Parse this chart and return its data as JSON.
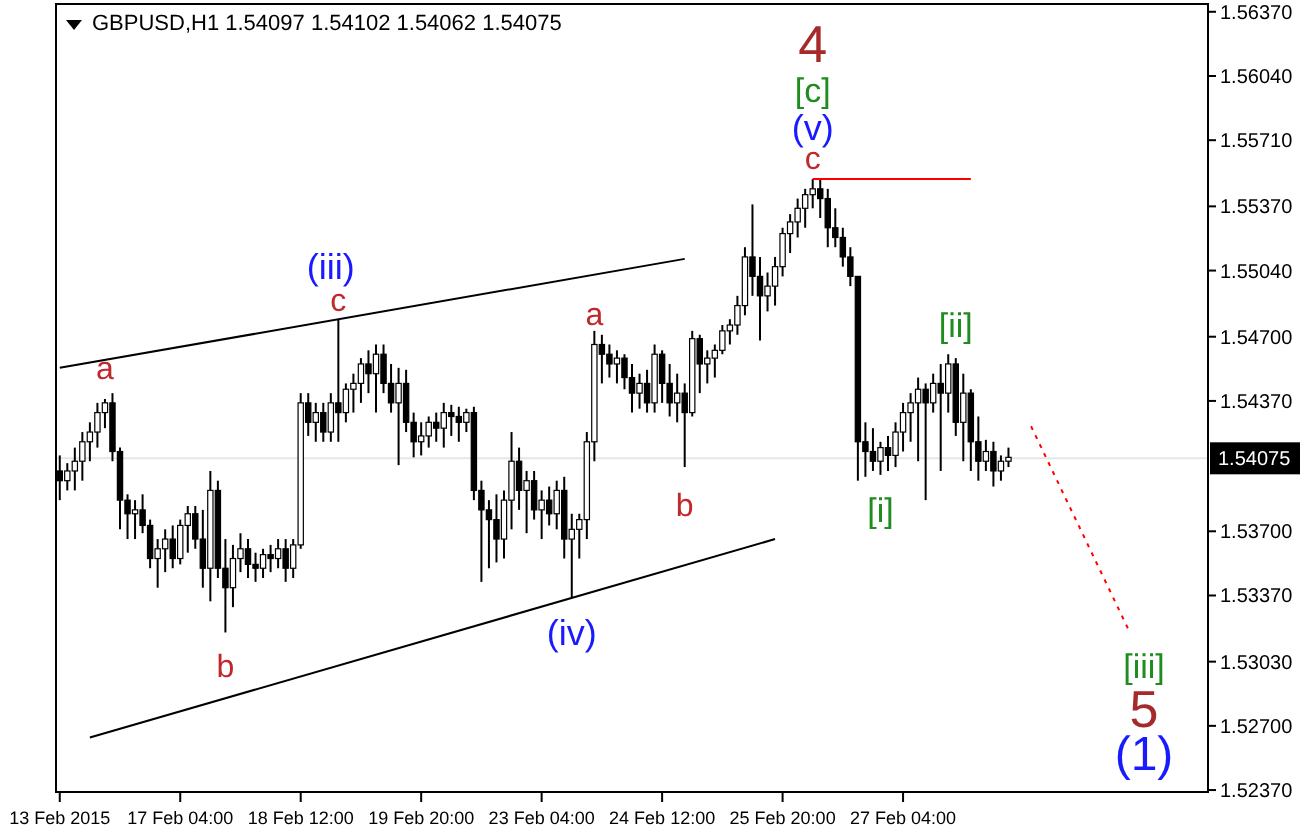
{
  "chart_data": {
    "type": "candlestick",
    "title": "GBPUSD,H1  1.54097 1.54102 1.54062 1.54075",
    "color": "#000000",
    "categories": [
      "13 Feb 2015",
      null,
      null,
      null,
      null,
      null,
      null,
      null,
      null,
      null,
      null,
      null,
      null,
      null,
      null,
      null,
      "17 Feb 04:00",
      null,
      null,
      null,
      null,
      null,
      null,
      null,
      null,
      null,
      null,
      null,
      null,
      null,
      null,
      null,
      "18 Feb 12:00",
      null,
      null,
      null,
      null,
      null,
      null,
      null,
      null,
      null,
      null,
      null,
      null,
      null,
      null,
      null,
      "19 Feb 20:00",
      null,
      null,
      null,
      null,
      null,
      null,
      null,
      null,
      null,
      null,
      null,
      null,
      null,
      null,
      null,
      "23 Feb 04:00",
      null,
      null,
      null,
      null,
      null,
      null,
      null,
      null,
      null,
      null,
      null,
      null,
      null,
      null,
      null,
      "24 Feb 12:00",
      null,
      null,
      null,
      null,
      null,
      null,
      null,
      null,
      null,
      null,
      null,
      null,
      null,
      null,
      null,
      "25 Feb 20:00",
      null,
      null,
      null,
      null,
      null,
      null,
      null,
      null,
      null,
      null,
      null,
      null,
      null,
      null,
      null,
      "27 Feb 04:00",
      null,
      null,
      null,
      null,
      null,
      null,
      null,
      null,
      null,
      null,
      null,
      null,
      null,
      null,
      null,
      null,
      null,
      null,
      null,
      null,
      null,
      null,
      null,
      null,
      null,
      null,
      null,
      null,
      null,
      null,
      null,
      null,
      null,
      null,
      null,
      null,
      null,
      null,
      null,
      null
    ],
    "ohlc": [
      [
        1.5401,
        1.5409,
        1.5386,
        1.5396
      ],
      [
        1.5396,
        1.5405,
        1.5391,
        1.5401
      ],
      [
        1.5401,
        1.5413,
        1.5391,
        1.5406
      ],
      [
        1.5406,
        1.5421,
        1.5396,
        1.5416
      ],
      [
        1.5416,
        1.5426,
        1.5406,
        1.5421
      ],
      [
        1.5421,
        1.5436,
        1.5413,
        1.5431
      ],
      [
        1.5431,
        1.5438,
        1.5423,
        1.5436
      ],
      [
        1.5436,
        1.5441,
        1.5406,
        1.5411
      ],
      [
        1.5411,
        1.5413,
        1.5371,
        1.5386
      ],
      [
        1.5386,
        1.5389,
        1.5366,
        1.5379
      ],
      [
        1.5379,
        1.5386,
        1.5366,
        1.5381
      ],
      [
        1.5381,
        1.5389,
        1.5369,
        1.5373
      ],
      [
        1.5373,
        1.5376,
        1.5351,
        1.5356
      ],
      [
        1.5356,
        1.5366,
        1.5341,
        1.5361
      ],
      [
        1.5361,
        1.5371,
        1.5349,
        1.5366
      ],
      [
        1.5366,
        1.5373,
        1.5351,
        1.5356
      ],
      [
        1.5356,
        1.5376,
        1.5353,
        1.5373
      ],
      [
        1.5373,
        1.5383,
        1.5359,
        1.5379
      ],
      [
        1.5379,
        1.5383,
        1.5361,
        1.5366
      ],
      [
        1.5366,
        1.5381,
        1.5341,
        1.5351
      ],
      [
        1.5351,
        1.5401,
        1.5334,
        1.5391
      ],
      [
        1.5391,
        1.5396,
        1.5346,
        1.5351
      ],
      [
        1.5351,
        1.5366,
        1.5318,
        1.5341
      ],
      [
        1.5341,
        1.5363,
        1.5331,
        1.5356
      ],
      [
        1.5356,
        1.5369,
        1.5349,
        1.5361
      ],
      [
        1.5361,
        1.5366,
        1.5346,
        1.5353
      ],
      [
        1.5353,
        1.5359,
        1.5344,
        1.5351
      ],
      [
        1.5351,
        1.5361,
        1.5346,
        1.5358
      ],
      [
        1.5358,
        1.5363,
        1.5349,
        1.5356
      ],
      [
        1.5356,
        1.5366,
        1.5351,
        1.5361
      ],
      [
        1.5361,
        1.5366,
        1.5344,
        1.5351
      ],
      [
        1.5351,
        1.5366,
        1.5346,
        1.5363
      ],
      [
        1.5363,
        1.5441,
        1.5361,
        1.5436
      ],
      [
        1.5436,
        1.5441,
        1.5419,
        1.5426
      ],
      [
        1.5426,
        1.5436,
        1.5416,
        1.5431
      ],
      [
        1.5431,
        1.5436,
        1.5416,
        1.5421
      ],
      [
        1.5421,
        1.5441,
        1.5416,
        1.5436
      ],
      [
        1.5436,
        1.5479,
        1.5416,
        1.5431
      ],
      [
        1.5431,
        1.5446,
        1.5426,
        1.5443
      ],
      [
        1.5443,
        1.5451,
        1.5431,
        1.5446
      ],
      [
        1.5446,
        1.5459,
        1.5436,
        1.5456
      ],
      [
        1.5456,
        1.5463,
        1.5441,
        1.5451
      ],
      [
        1.5451,
        1.5466,
        1.5431,
        1.5461
      ],
      [
        1.5461,
        1.5466,
        1.5441,
        1.5446
      ],
      [
        1.5446,
        1.5456,
        1.5431,
        1.5436
      ],
      [
        1.5436,
        1.5454,
        1.5404,
        1.5446
      ],
      [
        1.5446,
        1.5453,
        1.5421,
        1.5426
      ],
      [
        1.5426,
        1.5431,
        1.5408,
        1.5416
      ],
      [
        1.5416,
        1.5426,
        1.5409,
        1.5419
      ],
      [
        1.5419,
        1.5429,
        1.5413,
        1.5426
      ],
      [
        1.5426,
        1.5431,
        1.5416,
        1.5423
      ],
      [
        1.5423,
        1.5436,
        1.5413,
        1.5431
      ],
      [
        1.5431,
        1.5435,
        1.5419,
        1.5429
      ],
      [
        1.5429,
        1.5434,
        1.5416,
        1.5426
      ],
      [
        1.5426,
        1.5433,
        1.5421,
        1.5431
      ],
      [
        1.5431,
        1.5434,
        1.5386,
        1.5391
      ],
      [
        1.5391,
        1.5396,
        1.5344,
        1.5381
      ],
      [
        1.5381,
        1.5386,
        1.5351,
        1.5376
      ],
      [
        1.5376,
        1.5389,
        1.5354,
        1.5366
      ],
      [
        1.5366,
        1.5391,
        1.5356,
        1.5386
      ],
      [
        1.5386,
        1.5421,
        1.5371,
        1.5406
      ],
      [
        1.5406,
        1.5413,
        1.5381,
        1.5391
      ],
      [
        1.5391,
        1.5401,
        1.5369,
        1.5396
      ],
      [
        1.5396,
        1.5401,
        1.5376,
        1.5381
      ],
      [
        1.5381,
        1.5391,
        1.5366,
        1.5386
      ],
      [
        1.5386,
        1.5393,
        1.5373,
        1.5379
      ],
      [
        1.5379,
        1.5396,
        1.5371,
        1.5391
      ],
      [
        1.5391,
        1.5398,
        1.5356,
        1.5366
      ],
      [
        1.5366,
        1.5379,
        1.5336,
        1.5371
      ],
      [
        1.5371,
        1.5379,
        1.5356,
        1.5376
      ],
      [
        1.5376,
        1.5421,
        1.5366,
        1.5416
      ],
      [
        1.5416,
        1.5473,
        1.5406,
        1.5466
      ],
      [
        1.5466,
        1.5471,
        1.5446,
        1.5461
      ],
      [
        1.5461,
        1.5466,
        1.5449,
        1.5456
      ],
      [
        1.5456,
        1.5463,
        1.5446,
        1.5459
      ],
      [
        1.5459,
        1.5461,
        1.5443,
        1.5449
      ],
      [
        1.5449,
        1.5456,
        1.5431,
        1.5441
      ],
      [
        1.5441,
        1.5451,
        1.5433,
        1.5446
      ],
      [
        1.5446,
        1.5453,
        1.5431,
        1.5436
      ],
      [
        1.5436,
        1.5466,
        1.5431,
        1.5461
      ],
      [
        1.5461,
        1.5463,
        1.5436,
        1.5446
      ],
      [
        1.5446,
        1.5456,
        1.5429,
        1.5436
      ],
      [
        1.5436,
        1.5451,
        1.5426,
        1.5441
      ],
      [
        1.5441,
        1.5446,
        1.5403,
        1.5431
      ],
      [
        1.5431,
        1.5473,
        1.5429,
        1.5469
      ],
      [
        1.5469,
        1.5471,
        1.5441,
        1.5456
      ],
      [
        1.5456,
        1.5463,
        1.5446,
        1.5459
      ],
      [
        1.5459,
        1.5466,
        1.5449,
        1.5463
      ],
      [
        1.5463,
        1.5476,
        1.5461,
        1.5473
      ],
      [
        1.5473,
        1.5479,
        1.5466,
        1.5476
      ],
      [
        1.5476,
        1.5491,
        1.5471,
        1.5486
      ],
      [
        1.5486,
        1.5516,
        1.5481,
        1.5511
      ],
      [
        1.5511,
        1.5538,
        1.5491,
        1.5501
      ],
      [
        1.5501,
        1.5511,
        1.5468,
        1.5491
      ],
      [
        1.5491,
        1.5503,
        1.5483,
        1.5496
      ],
      [
        1.5496,
        1.5511,
        1.5486,
        1.5506
      ],
      [
        1.5506,
        1.5526,
        1.5501,
        1.5523
      ],
      [
        1.5523,
        1.5533,
        1.5513,
        1.5529
      ],
      [
        1.5529,
        1.5541,
        1.5521,
        1.5536
      ],
      [
        1.5536,
        1.5546,
        1.5526,
        1.5543
      ],
      [
        1.5543,
        1.5551,
        1.5536,
        1.5546
      ],
      [
        1.5546,
        1.5551,
        1.5531,
        1.5541
      ],
      [
        1.5541,
        1.5546,
        1.5516,
        1.5526
      ],
      [
        1.5526,
        1.5536,
        1.5516,
        1.5521
      ],
      [
        1.5521,
        1.5526,
        1.5506,
        1.5511
      ],
      [
        1.5511,
        1.5516,
        1.5496,
        1.5501
      ],
      [
        1.5501,
        1.5501,
        1.5396,
        1.5416
      ],
      [
        1.5416,
        1.5426,
        1.5398,
        1.5411
      ],
      [
        1.5411,
        1.5423,
        1.5401,
        1.5406
      ],
      [
        1.5406,
        1.5416,
        1.5399,
        1.5413
      ],
      [
        1.5413,
        1.5419,
        1.5401,
        1.5409
      ],
      [
        1.5409,
        1.5426,
        1.5403,
        1.5421
      ],
      [
        1.5421,
        1.5436,
        1.5411,
        1.5431
      ],
      [
        1.5431,
        1.5441,
        1.5416,
        1.5436
      ],
      [
        1.5436,
        1.5449,
        1.5406,
        1.5443
      ],
      [
        1.5443,
        1.5446,
        1.5386,
        1.5436
      ],
      [
        1.5436,
        1.5451,
        1.5431,
        1.5446
      ],
      [
        1.5446,
        1.5456,
        1.5401,
        1.5441
      ],
      [
        1.5441,
        1.5461,
        1.5431,
        1.5456
      ],
      [
        1.5456,
        1.5459,
        1.5419,
        1.5426
      ],
      [
        1.5426,
        1.5451,
        1.5406,
        1.5441
      ],
      [
        1.5441,
        1.5443,
        1.5401,
        1.5416
      ],
      [
        1.5416,
        1.5429,
        1.5396,
        1.5406
      ],
      [
        1.5406,
        1.5417,
        1.5401,
        1.5411
      ],
      [
        1.5411,
        1.5416,
        1.5393,
        1.5401
      ],
      [
        1.5401,
        1.5409,
        1.5396,
        1.5406
      ],
      [
        1.5406,
        1.5413,
        1.5403,
        1.5408
      ],
      null,
      null,
      null,
      null,
      null,
      null,
      null,
      null,
      null,
      null,
      null,
      null,
      null,
      null,
      null,
      null,
      null,
      null,
      null,
      null,
      null,
      null,
      null,
      null,
      null,
      null
    ],
    "series": [
      {
        "type": "line",
        "color": "#000000",
        "line_style": "solid",
        "values": [
          1.5454,
          null,
          null,
          null,
          null,
          null,
          null,
          null,
          null,
          null,
          null,
          null,
          null,
          null,
          null,
          null,
          null,
          null,
          null,
          null,
          null,
          null,
          null,
          null,
          null,
          null,
          null,
          null,
          null,
          null,
          null,
          null,
          null,
          null,
          null,
          null,
          null,
          null,
          null,
          null,
          null,
          null,
          null,
          null,
          null,
          null,
          null,
          null,
          null,
          null,
          null,
          null,
          null,
          null,
          null,
          null,
          null,
          null,
          null,
          null,
          null,
          null,
          null,
          null,
          null,
          null,
          null,
          null,
          null,
          null,
          null,
          null,
          null,
          null,
          null,
          null,
          null,
          null,
          null,
          null,
          null,
          null,
          null,
          1.551,
          null,
          null,
          null,
          null,
          null,
          null,
          null,
          null,
          null,
          null,
          null,
          null,
          null,
          null,
          null,
          null,
          null,
          null,
          null,
          null,
          null,
          null,
          null,
          null,
          null,
          null,
          null,
          null,
          null,
          null,
          null,
          null,
          null,
          null,
          null,
          null,
          null,
          null,
          null,
          null,
          null,
          null,
          null,
          null,
          null,
          null,
          null,
          null,
          null,
          null,
          null,
          null,
          null,
          null,
          null,
          null,
          null,
          null,
          null,
          null,
          null,
          null,
          null,
          null,
          null,
          null,
          null,
          null,
          null
        ]
      },
      {
        "type": "line",
        "color": "#000000",
        "line_style": "solid",
        "values": [
          null,
          null,
          null,
          null,
          1.5264,
          null,
          null,
          null,
          null,
          null,
          null,
          null,
          null,
          null,
          null,
          null,
          null,
          null,
          null,
          null,
          null,
          null,
          null,
          null,
          null,
          null,
          null,
          null,
          null,
          null,
          null,
          null,
          null,
          null,
          null,
          null,
          null,
          null,
          null,
          null,
          null,
          null,
          null,
          null,
          null,
          null,
          null,
          null,
          null,
          null,
          null,
          null,
          null,
          null,
          null,
          null,
          null,
          null,
          null,
          null,
          null,
          null,
          null,
          null,
          null,
          null,
          null,
          null,
          null,
          null,
          null,
          null,
          null,
          null,
          null,
          null,
          null,
          null,
          null,
          null,
          null,
          null,
          null,
          null,
          null,
          null,
          null,
          null,
          null,
          null,
          null,
          null,
          null,
          null,
          null,
          1.5366,
          null,
          null,
          null,
          null,
          null,
          null,
          null,
          null,
          null,
          null,
          null,
          null,
          null,
          null,
          null,
          null,
          null,
          null,
          null,
          null,
          null,
          null,
          null,
          null,
          null,
          null,
          null,
          null,
          null,
          null,
          null,
          null,
          null,
          null,
          null,
          null,
          null,
          null,
          null,
          null,
          null,
          null,
          null,
          null,
          null,
          null,
          null,
          null,
          null,
          null,
          null,
          null,
          null,
          null,
          null,
          null,
          null
        ]
      },
      {
        "type": "line",
        "color": "#ff0000",
        "line_style": "solid",
        "values": [
          null,
          null,
          null,
          null,
          null,
          null,
          null,
          null,
          null,
          null,
          null,
          null,
          null,
          null,
          null,
          null,
          null,
          null,
          null,
          null,
          null,
          null,
          null,
          null,
          null,
          null,
          null,
          null,
          null,
          null,
          null,
          null,
          null,
          null,
          null,
          null,
          null,
          null,
          null,
          null,
          null,
          null,
          null,
          null,
          null,
          null,
          null,
          null,
          null,
          null,
          null,
          null,
          null,
          null,
          null,
          null,
          null,
          null,
          null,
          null,
          null,
          null,
          null,
          null,
          null,
          null,
          null,
          null,
          null,
          null,
          null,
          null,
          null,
          null,
          null,
          null,
          null,
          null,
          null,
          null,
          null,
          null,
          null,
          null,
          null,
          null,
          null,
          null,
          null,
          null,
          null,
          null,
          null,
          null,
          null,
          null,
          null,
          null,
          null,
          null,
          1.5551,
          null,
          null,
          null,
          null,
          null,
          null,
          null,
          null,
          null,
          null,
          null,
          null,
          null,
          null,
          null,
          null,
          null,
          null,
          null,
          null,
          1.5551,
          null,
          null,
          null,
          null,
          null,
          null,
          null,
          null,
          null,
          null,
          null,
          null,
          null,
          null,
          null,
          null,
          null,
          null,
          null,
          null,
          null,
          null,
          null,
          null,
          null,
          null,
          null,
          null,
          null,
          null,
          null
        ]
      },
      {
        "type": "line",
        "color": "#ff0000",
        "line_style": "dotted",
        "values": [
          null,
          null,
          null,
          null,
          null,
          null,
          null,
          null,
          null,
          null,
          null,
          null,
          null,
          null,
          null,
          null,
          null,
          null,
          null,
          null,
          null,
          null,
          null,
          null,
          null,
          null,
          null,
          null,
          null,
          null,
          null,
          null,
          null,
          null,
          null,
          null,
          null,
          null,
          null,
          null,
          null,
          null,
          null,
          null,
          null,
          null,
          null,
          null,
          null,
          null,
          null,
          null,
          null,
          null,
          null,
          null,
          null,
          null,
          null,
          null,
          null,
          null,
          null,
          null,
          null,
          null,
          null,
          null,
          null,
          null,
          null,
          null,
          null,
          null,
          null,
          null,
          null,
          null,
          null,
          null,
          null,
          null,
          null,
          null,
          null,
          null,
          null,
          null,
          null,
          null,
          null,
          null,
          null,
          null,
          null,
          null,
          null,
          null,
          null,
          null,
          null,
          null,
          null,
          null,
          null,
          null,
          null,
          null,
          null,
          null,
          null,
          null,
          null,
          null,
          null,
          null,
          null,
          null,
          null,
          null,
          null,
          null,
          null,
          null,
          null,
          null,
          null,
          null,
          null,
          1.5424,
          null,
          null,
          null,
          null,
          null,
          null,
          null,
          null,
          null,
          null,
          null,
          null,
          1.5319,
          null,
          null,
          null,
          null,
          null,
          null,
          null,
          null,
          null,
          null
        ]
      }
    ],
    "annotations": [
      "a",
      "b",
      "(iii)",
      "c",
      "(iv)",
      "a",
      "b",
      "4",
      "[c]",
      "(v)",
      "c",
      "[i]",
      "[ii]",
      "[iii]",
      "5",
      "(1)"
    ],
    "ref_lines": [
      {
        "axis": "y",
        "value": 1.54075,
        "label": "1.54075",
        "color": "#e6e6e6"
      }
    ],
    "ylim": [
      1.5236,
      1.5641
    ],
    "yticks": [
      {
        "value": 1.5637,
        "label": "1.56370"
      },
      {
        "value": 1.5604,
        "label": "1.56040"
      },
      {
        "value": 1.5571,
        "label": "1.55710"
      },
      {
        "value": 1.5537,
        "label": "1.55370"
      },
      {
        "value": 1.5504,
        "label": "1.55040"
      },
      {
        "value": 1.547,
        "label": "1.54700"
      },
      {
        "value": 1.5437,
        "label": "1.54370"
      },
      {
        "value": 1.537,
        "label": "1.53700"
      },
      {
        "value": 1.5337,
        "label": "1.53370"
      },
      {
        "value": 1.5303,
        "label": "1.53030"
      },
      {
        "value": 1.527,
        "label": "1.52700"
      },
      {
        "value": 1.5237,
        "label": "1.52370"
      }
    ]
  }
}
